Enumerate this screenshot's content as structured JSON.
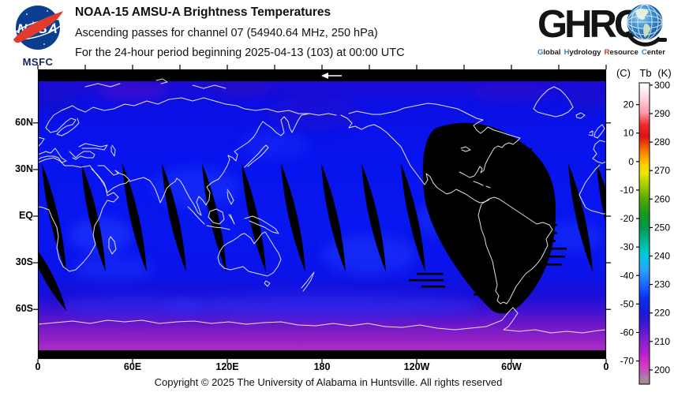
{
  "header": {
    "nasa": {
      "logo_text": "NASA",
      "caption": "MSFC"
    },
    "titles": {
      "line1": "NOAA-15 AMSU-A Brightness Temperatures",
      "line2": "Ascending passes for channel 07 (54940.64 MHz, 250 hPa)",
      "line3": "For the 24-hour period beginning 2025-04-13 (103) at 00:00 UTC"
    },
    "ghrc": {
      "acronym": "GHRC",
      "subtitle": "Global Hydrology Resource Center",
      "subtitle_words": [
        {
          "text": "Global",
          "initial_color": "#2f7fc1"
        },
        {
          "text": "Hydrology",
          "initial_color": "#2f7fc1"
        },
        {
          "text": "Resource",
          "initial_color": "#c23b2a"
        },
        {
          "text": "Center",
          "initial_color": "#2f7fc1"
        }
      ]
    }
  },
  "footer": {
    "copyright": "Copyright © 2025 The University of Alabama in Huntsville.  All rights reserved"
  },
  "chart_data": {
    "type": "heatmap",
    "title": "NOAA-15 AMSU-A Brightness Temperatures",
    "subtitle1": "Ascending passes for channel 07 (54940.64 MHz, 250 hPa)",
    "subtitle2": "For the 24-hour period beginning 2025-04-13 (103) at 00:00 UTC",
    "projection": "equirectangular, longitudes 0E to 360E",
    "x_axis": {
      "range_deg_east": [
        0,
        360
      ],
      "ticks": [
        {
          "lon": 0,
          "label": "0"
        },
        {
          "lon": 60,
          "label": "60E"
        },
        {
          "lon": 120,
          "label": "120E"
        },
        {
          "lon": 180,
          "label": "180"
        },
        {
          "lon": 240,
          "label": "120W"
        },
        {
          "lon": 300,
          "label": "60W"
        },
        {
          "lon": 360,
          "label": "0"
        }
      ]
    },
    "y_axis": {
      "range_deg_lat": [
        -90,
        90
      ],
      "ticks": [
        {
          "lat": 60,
          "label": "60N"
        },
        {
          "lat": 30,
          "label": "30N"
        },
        {
          "lat": 0,
          "label": "EQ"
        },
        {
          "lat": -30,
          "label": "30S"
        },
        {
          "lat": -60,
          "label": "60S"
        }
      ]
    },
    "colorbar": {
      "header": [
        "(C)",
        "Tb",
        "(K)"
      ],
      "kelvin_ticks": [
        300,
        290,
        280,
        270,
        260,
        250,
        240,
        230,
        220,
        210,
        200
      ],
      "celsius_ticks": [
        20,
        10,
        0,
        -10,
        -20,
        -30,
        -40,
        -50,
        -60,
        -70
      ],
      "range_k": [
        195,
        300.8
      ],
      "stops": [
        [
          300,
          "#ffffff"
        ],
        [
          295,
          "#ffd2dc"
        ],
        [
          290,
          "#ff92a2"
        ],
        [
          286,
          "#f02828"
        ],
        [
          282,
          "#dc1414"
        ],
        [
          279,
          "#ea5200"
        ],
        [
          275,
          "#ff9a00"
        ],
        [
          272,
          "#ffd000"
        ],
        [
          269,
          "#e8e800"
        ],
        [
          265,
          "#a8cc00"
        ],
        [
          260,
          "#56aa00"
        ],
        [
          255,
          "#169a1e"
        ],
        [
          250,
          "#009a46"
        ],
        [
          247,
          "#00aa7c"
        ],
        [
          243,
          "#00c2b6"
        ],
        [
          240,
          "#00c8e2"
        ],
        [
          235,
          "#2e9eff"
        ],
        [
          230,
          "#1b6aff"
        ],
        [
          225,
          "#0a2ef2"
        ],
        [
          220,
          "#1b1bd8"
        ],
        [
          216,
          "#4416d0"
        ],
        [
          211,
          "#7d1fd0"
        ],
        [
          206,
          "#b022cc"
        ],
        [
          202,
          "#d633c8"
        ],
        [
          199,
          "#c05cb4"
        ],
        [
          197,
          "#a886a6"
        ],
        [
          195,
          "#9a909a"
        ]
      ]
    },
    "no_data_color": "#000000",
    "polar_no_data_bands_lat": [
      [
        82.5,
        90
      ],
      [
        -84,
        -90
      ]
    ],
    "swath_gap_top_lon_e": [
      2.5,
      27.5,
      53.5,
      78.5,
      104,
      129,
      154,
      179.5,
      205,
      230,
      336,
      354
    ],
    "large_gap_lon_w_range": [
      107,
      32
    ],
    "large_gap_lat_range": [
      33,
      -58
    ],
    "time_marker_arrow_lon_e": 180,
    "notes": "black regions = no ascending-pass coverage; background field ~210-235 K (blue to purple over Antarctica)"
  }
}
